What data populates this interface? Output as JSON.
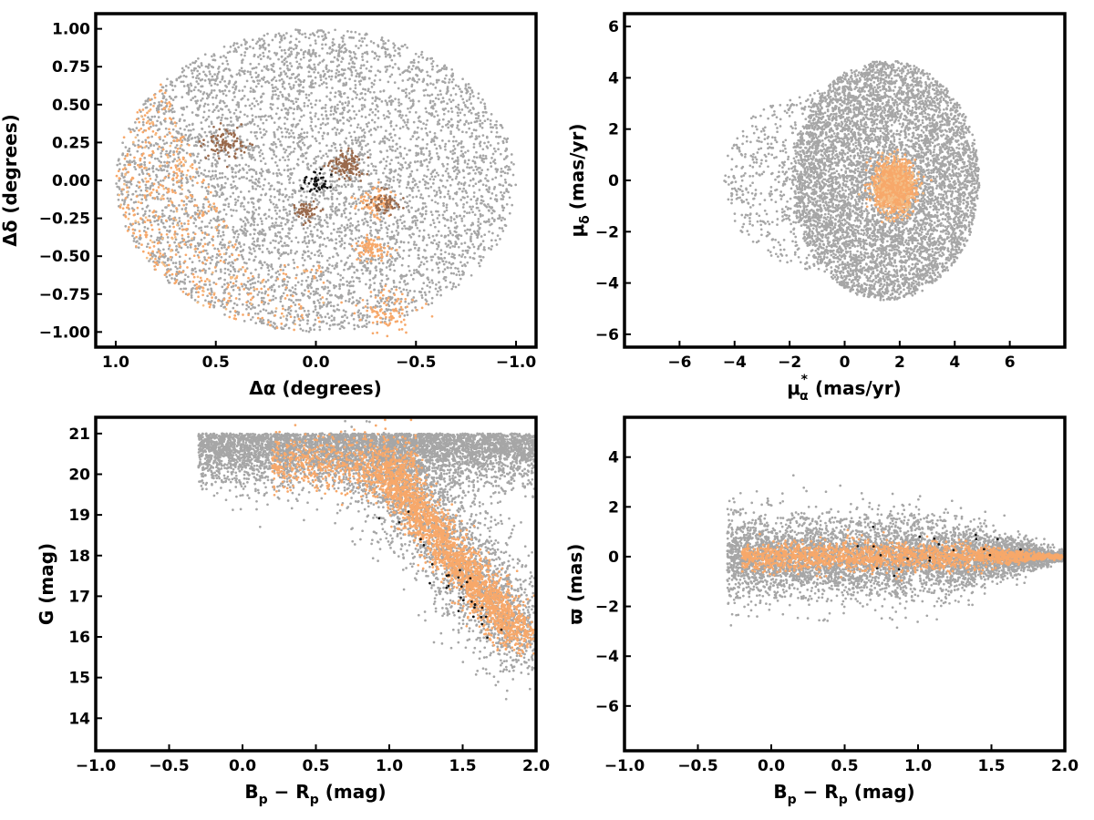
{
  "colors": {
    "field": "#a6a6a6",
    "members": "#f7a86a",
    "members_light": "#f4be86",
    "clump": "#9a6a4c",
    "core": "#111111"
  },
  "chart_data": [
    {
      "id": "sky",
      "type": "scatter",
      "xlabel": "Δα (degrees)",
      "ylabel": "Δδ (degrees)",
      "xlim": [
        1.1,
        -1.1
      ],
      "ylim": [
        -1.1,
        1.1
      ],
      "xticks": [
        1.0,
        0.5,
        0.0,
        -0.5,
        -1.0
      ],
      "xtick_labels": [
        "1.0",
        "0.5",
        "0.0",
        "−0.5",
        "−1.0"
      ],
      "yticks": [
        1.0,
        0.75,
        0.5,
        0.25,
        0.0,
        -0.25,
        -0.5,
        -0.75,
        -1.0
      ],
      "ytick_labels": [
        "1.00",
        "0.75",
        "0.50",
        "0.25",
        "0.00",
        "−0.25",
        "−0.50",
        "−0.75",
        "−1.00"
      ],
      "series": [
        {
          "role": "field",
          "points": [
            [
              0.0,
              0.0
            ],
            [
              0.3,
              0.5
            ],
            [
              -0.5,
              -0.3
            ],
            [
              -0.8,
              0.2
            ],
            [
              0.6,
              0.6
            ],
            [
              -0.3,
              0.8
            ]
          ]
        },
        {
          "role": "members",
          "points": [
            [
              0.7,
              0.1
            ],
            [
              0.8,
              -0.3
            ],
            [
              0.5,
              -0.6
            ],
            [
              0.3,
              -0.9
            ],
            [
              0.65,
              0.45
            ]
          ]
        },
        {
          "role": "clump",
          "points": [
            [
              -0.15,
              0.1
            ],
            [
              0.45,
              0.25
            ],
            [
              0.05,
              -0.15
            ],
            [
              -0.3,
              -0.15
            ]
          ]
        },
        {
          "role": "core",
          "points": [
            [
              0.0,
              -0.03
            ],
            [
              0.02,
              0.0
            ],
            [
              -0.02,
              -0.02
            ]
          ]
        }
      ]
    },
    {
      "id": "proper-motion",
      "type": "scatter",
      "xlabel": "μ",
      "xlabel_sub": "α",
      "xlabel_sup": "*",
      "xlabel_unit": "(mas/yr)",
      "ylabel": "μ",
      "ylabel_sub": "δ",
      "ylabel_unit": "(mas/yr)",
      "xlim": [
        -8,
        8
      ],
      "ylim": [
        -6.5,
        6.5
      ],
      "xticks": [
        -6,
        -4,
        -2,
        0,
        2,
        4,
        6
      ],
      "xtick_labels": [
        "−6",
        "−4",
        "−2",
        "0",
        "2",
        "4",
        "6"
      ],
      "yticks": [
        6,
        4,
        2,
        0,
        -2,
        -4,
        -6
      ],
      "ytick_labels": [
        "6",
        "4",
        "2",
        "0",
        "−2",
        "−4",
        "−6"
      ],
      "series": [
        {
          "role": "field",
          "points": [
            [
              1.5,
              0.0
            ],
            [
              0.0,
              2.0
            ],
            [
              3.5,
              -1.5
            ],
            [
              -2.0,
              0.5
            ]
          ]
        },
        {
          "role": "members",
          "points": [
            [
              1.8,
              -0.2
            ],
            [
              1.6,
              0.1
            ],
            [
              2.0,
              -0.5
            ]
          ]
        }
      ]
    },
    {
      "id": "cmd",
      "type": "scatter",
      "xlabel": "B",
      "xlabel_sub": "p",
      "xlabel_mid": " − R",
      "xlabel_sub2": "p",
      "xlabel_unit": " (mag)",
      "ylabel": "G (mag)",
      "xlim": [
        -1.0,
        2.0
      ],
      "ylim": [
        13.2,
        21.4
      ],
      "xticks": [
        -1.0,
        -0.5,
        0.0,
        0.5,
        1.0,
        1.5,
        2.0
      ],
      "xtick_labels": [
        "−1.0",
        "−0.5",
        "0.0",
        "0.5",
        "1.0",
        "1.5",
        "2.0"
      ],
      "yticks": [
        21,
        20,
        19,
        18,
        17,
        16,
        15,
        14
      ],
      "ytick_labels": [
        "21",
        "20",
        "19",
        "18",
        "17",
        "16",
        "15",
        "14"
      ],
      "series": [
        {
          "role": "field",
          "points": [
            [
              0.6,
              20.7
            ],
            [
              1.2,
              19.5
            ],
            [
              1.6,
              18.0
            ],
            [
              0.3,
              20.2
            ]
          ]
        },
        {
          "role": "members",
          "points": [
            [
              1.0,
              19.5
            ],
            [
              1.3,
              18.0
            ],
            [
              1.6,
              16.8
            ],
            [
              1.9,
              15.9
            ]
          ]
        },
        {
          "role": "core",
          "points": [
            [
              1.1,
              19.0
            ],
            [
              1.4,
              17.9
            ],
            [
              1.7,
              16.4
            ]
          ]
        }
      ]
    },
    {
      "id": "parallax",
      "type": "scatter",
      "xlabel": "B",
      "xlabel_sub": "p",
      "xlabel_mid": " − R",
      "xlabel_sub2": "p",
      "xlabel_unit": " (mag)",
      "ylabel": "ϖ (mas)",
      "xlim": [
        -1.0,
        2.0
      ],
      "ylim": [
        -7.8,
        5.6
      ],
      "xticks": [
        -1.0,
        -0.5,
        0.0,
        0.5,
        1.0,
        1.5,
        2.0
      ],
      "xtick_labels": [
        "−1.0",
        "−0.5",
        "0.0",
        "0.5",
        "1.0",
        "1.5",
        "2.0"
      ],
      "yticks": [
        4,
        2,
        0,
        -2,
        -4,
        -6
      ],
      "ytick_labels": [
        "4",
        "2",
        "0",
        "−2",
        "−4",
        "−6"
      ],
      "series": [
        {
          "role": "field",
          "points": [
            [
              0.5,
              0.0
            ],
            [
              1.0,
              0.3
            ],
            [
              1.5,
              0.1
            ],
            [
              0.2,
              -0.8
            ]
          ]
        },
        {
          "role": "members",
          "points": [
            [
              0.6,
              0.0
            ],
            [
              1.1,
              0.0
            ],
            [
              1.7,
              0.0
            ]
          ]
        },
        {
          "role": "core",
          "points": [
            [
              0.9,
              -0.1
            ],
            [
              1.2,
              0.2
            ]
          ]
        }
      ]
    }
  ]
}
